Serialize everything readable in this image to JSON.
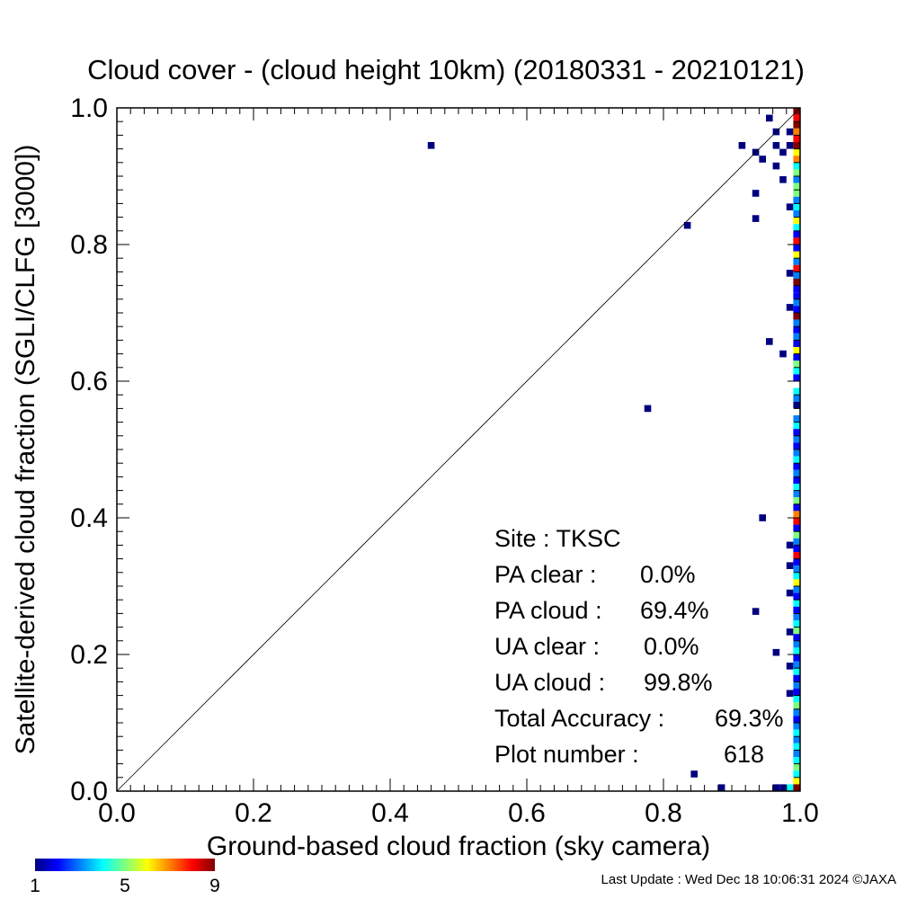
{
  "chart_data": {
    "type": "heatmap",
    "title": "Cloud cover - (cloud height 10km)  (20180331 - 20210121)",
    "xlabel": "Ground-based cloud fraction (sky camera)",
    "ylabel": "Satellite-derived cloud fraction (SGLI/CLFG [3000])",
    "xlim": [
      0.0,
      1.0
    ],
    "ylim": [
      0.0,
      1.0
    ],
    "xticks": [
      "0.0",
      "0.2",
      "0.4",
      "0.6",
      "0.8",
      "1.0"
    ],
    "yticks": [
      "0.0",
      "0.2",
      "0.4",
      "0.6",
      "0.8",
      "1.0"
    ],
    "diagonal": true,
    "stats": [
      {
        "label": "Site : TKSC",
        "value": ""
      },
      {
        "label": "PA clear :",
        "value": "0.0%"
      },
      {
        "label": "PA cloud :",
        "value": "69.4%"
      },
      {
        "label": "UA clear :",
        "value": "0.0%"
      },
      {
        "label": "UA cloud :",
        "value": "99.8%"
      },
      {
        "label": "Total Accuracy :",
        "value": "69.3%"
      },
      {
        "label": "Plot number :",
        "value": "618"
      }
    ],
    "colorbar": {
      "min_label": "1",
      "mid_label": "5",
      "max_label": "9",
      "colors": [
        "#00007f",
        "#0000ff",
        "#0080ff",
        "#00ffff",
        "#7fff7f",
        "#ffff00",
        "#ff8000",
        "#ff0000",
        "#7f0000"
      ]
    },
    "points": [
      {
        "x": 0.46,
        "y": 0.945,
        "count": 1
      },
      {
        "x": 0.777,
        "y": 0.56,
        "count": 1
      },
      {
        "x": 0.835,
        "y": 0.828,
        "count": 1
      },
      {
        "x": 0.845,
        "y": 0.025,
        "count": 1
      },
      {
        "x": 0.885,
        "y": 0.005,
        "count": 1
      },
      {
        "x": 0.915,
        "y": 0.945,
        "count": 1
      },
      {
        "x": 0.935,
        "y": 0.935,
        "count": 1
      },
      {
        "x": 0.935,
        "y": 0.875,
        "count": 1
      },
      {
        "x": 0.935,
        "y": 0.838,
        "count": 1
      },
      {
        "x": 0.935,
        "y": 0.263,
        "count": 1
      },
      {
        "x": 0.945,
        "y": 0.925,
        "count": 1
      },
      {
        "x": 0.945,
        "y": 0.4,
        "count": 1
      },
      {
        "x": 0.955,
        "y": 0.985,
        "count": 1
      },
      {
        "x": 0.955,
        "y": 0.658,
        "count": 1
      },
      {
        "x": 0.965,
        "y": 0.945,
        "count": 1
      },
      {
        "x": 0.965,
        "y": 0.965,
        "count": 1
      },
      {
        "x": 0.965,
        "y": 0.915,
        "count": 1
      },
      {
        "x": 0.965,
        "y": 0.203,
        "count": 1
      },
      {
        "x": 0.965,
        "y": 0.005,
        "count": 1
      },
      {
        "x": 0.975,
        "y": 0.935,
        "count": 1
      },
      {
        "x": 0.975,
        "y": 0.895,
        "count": 1
      },
      {
        "x": 0.975,
        "y": 0.64,
        "count": 1
      },
      {
        "x": 0.975,
        "y": 0.005,
        "count": 1
      },
      {
        "x": 0.985,
        "y": 0.965,
        "count": 1
      },
      {
        "x": 0.985,
        "y": 0.945,
        "count": 1
      },
      {
        "x": 0.985,
        "y": 0.855,
        "count": 1
      },
      {
        "x": 0.985,
        "y": 0.758,
        "count": 1
      },
      {
        "x": 0.985,
        "y": 0.708,
        "count": 1
      },
      {
        "x": 0.985,
        "y": 0.36,
        "count": 1
      },
      {
        "x": 0.985,
        "y": 0.33,
        "count": 1
      },
      {
        "x": 0.985,
        "y": 0.29,
        "count": 1
      },
      {
        "x": 0.985,
        "y": 0.233,
        "count": 1
      },
      {
        "x": 0.985,
        "y": 0.183,
        "count": 1
      },
      {
        "x": 0.985,
        "y": 0.143,
        "count": 1
      },
      {
        "x": 0.985,
        "y": 0.005,
        "count": 4
      },
      {
        "x": 0.995,
        "y": 0.995,
        "count": 9
      },
      {
        "x": 0.995,
        "y": 0.985,
        "count": 8
      },
      {
        "x": 0.995,
        "y": 0.975,
        "count": 9
      },
      {
        "x": 0.995,
        "y": 0.965,
        "count": 7
      },
      {
        "x": 0.995,
        "y": 0.955,
        "count": 8
      },
      {
        "x": 0.995,
        "y": 0.945,
        "count": 9
      },
      {
        "x": 0.995,
        "y": 0.935,
        "count": 6
      },
      {
        "x": 0.995,
        "y": 0.925,
        "count": 7
      },
      {
        "x": 0.995,
        "y": 0.915,
        "count": 4
      },
      {
        "x": 0.995,
        "y": 0.905,
        "count": 5
      },
      {
        "x": 0.995,
        "y": 0.895,
        "count": 3
      },
      {
        "x": 0.995,
        "y": 0.885,
        "count": 5
      },
      {
        "x": 0.995,
        "y": 0.875,
        "count": 5
      },
      {
        "x": 0.995,
        "y": 0.865,
        "count": 3
      },
      {
        "x": 0.995,
        "y": 0.855,
        "count": 4
      },
      {
        "x": 0.995,
        "y": 0.845,
        "count": 3
      },
      {
        "x": 0.995,
        "y": 0.835,
        "count": 6
      },
      {
        "x": 0.995,
        "y": 0.825,
        "count": 4
      },
      {
        "x": 0.995,
        "y": 0.815,
        "count": 2
      },
      {
        "x": 0.995,
        "y": 0.805,
        "count": 8
      },
      {
        "x": 0.995,
        "y": 0.795,
        "count": 2
      },
      {
        "x": 0.995,
        "y": 0.785,
        "count": 6
      },
      {
        "x": 0.995,
        "y": 0.775,
        "count": 3
      },
      {
        "x": 0.995,
        "y": 0.765,
        "count": 8
      },
      {
        "x": 0.995,
        "y": 0.755,
        "count": 3
      },
      {
        "x": 0.995,
        "y": 0.745,
        "count": 9
      },
      {
        "x": 0.995,
        "y": 0.735,
        "count": 2
      },
      {
        "x": 0.995,
        "y": 0.725,
        "count": 2
      },
      {
        "x": 0.995,
        "y": 0.715,
        "count": 3
      },
      {
        "x": 0.995,
        "y": 0.705,
        "count": 2
      },
      {
        "x": 0.995,
        "y": 0.695,
        "count": 9
      },
      {
        "x": 0.995,
        "y": 0.685,
        "count": 3
      },
      {
        "x": 0.995,
        "y": 0.675,
        "count": 2
      },
      {
        "x": 0.995,
        "y": 0.665,
        "count": 3
      },
      {
        "x": 0.995,
        "y": 0.655,
        "count": 2
      },
      {
        "x": 0.995,
        "y": 0.645,
        "count": 6
      },
      {
        "x": 0.995,
        "y": 0.635,
        "count": 2
      },
      {
        "x": 0.995,
        "y": 0.625,
        "count": 5
      },
      {
        "x": 0.995,
        "y": 0.615,
        "count": 4
      },
      {
        "x": 0.995,
        "y": 0.605,
        "count": 2
      },
      {
        "x": 0.995,
        "y": 0.585,
        "count": 4
      },
      {
        "x": 0.995,
        "y": 0.575,
        "count": 3
      },
      {
        "x": 0.995,
        "y": 0.565,
        "count": 1
      },
      {
        "x": 0.995,
        "y": 0.545,
        "count": 3
      },
      {
        "x": 0.995,
        "y": 0.535,
        "count": 4
      },
      {
        "x": 0.995,
        "y": 0.525,
        "count": 2
      },
      {
        "x": 0.995,
        "y": 0.515,
        "count": 3
      },
      {
        "x": 0.995,
        "y": 0.505,
        "count": 2
      },
      {
        "x": 0.995,
        "y": 0.495,
        "count": 3
      },
      {
        "x": 0.995,
        "y": 0.485,
        "count": 4
      },
      {
        "x": 0.995,
        "y": 0.475,
        "count": 2
      },
      {
        "x": 0.995,
        "y": 0.465,
        "count": 3
      },
      {
        "x": 0.995,
        "y": 0.455,
        "count": 2
      },
      {
        "x": 0.995,
        "y": 0.445,
        "count": 4
      },
      {
        "x": 0.995,
        "y": 0.435,
        "count": 3
      },
      {
        "x": 0.995,
        "y": 0.425,
        "count": 5
      },
      {
        "x": 0.995,
        "y": 0.415,
        "count": 2
      },
      {
        "x": 0.995,
        "y": 0.405,
        "count": 7
      },
      {
        "x": 0.995,
        "y": 0.395,
        "count": 8
      },
      {
        "x": 0.995,
        "y": 0.385,
        "count": 2
      },
      {
        "x": 0.995,
        "y": 0.375,
        "count": 5
      },
      {
        "x": 0.995,
        "y": 0.365,
        "count": 3
      },
      {
        "x": 0.995,
        "y": 0.355,
        "count": 2
      },
      {
        "x": 0.995,
        "y": 0.345,
        "count": 8
      },
      {
        "x": 0.995,
        "y": 0.335,
        "count": 2
      },
      {
        "x": 0.995,
        "y": 0.325,
        "count": 3
      },
      {
        "x": 0.995,
        "y": 0.315,
        "count": 4
      },
      {
        "x": 0.995,
        "y": 0.305,
        "count": 6
      },
      {
        "x": 0.995,
        "y": 0.295,
        "count": 3
      },
      {
        "x": 0.995,
        "y": 0.285,
        "count": 2
      },
      {
        "x": 0.995,
        "y": 0.275,
        "count": 4
      },
      {
        "x": 0.995,
        "y": 0.265,
        "count": 2
      },
      {
        "x": 0.995,
        "y": 0.255,
        "count": 3
      },
      {
        "x": 0.995,
        "y": 0.245,
        "count": 4
      },
      {
        "x": 0.995,
        "y": 0.235,
        "count": 5
      },
      {
        "x": 0.995,
        "y": 0.225,
        "count": 2
      },
      {
        "x": 0.995,
        "y": 0.215,
        "count": 3
      },
      {
        "x": 0.995,
        "y": 0.205,
        "count": 4
      },
      {
        "x": 0.995,
        "y": 0.195,
        "count": 2
      },
      {
        "x": 0.995,
        "y": 0.185,
        "count": 3
      },
      {
        "x": 0.995,
        "y": 0.175,
        "count": 4
      },
      {
        "x": 0.995,
        "y": 0.165,
        "count": 2
      },
      {
        "x": 0.995,
        "y": 0.155,
        "count": 3
      },
      {
        "x": 0.995,
        "y": 0.145,
        "count": 2
      },
      {
        "x": 0.995,
        "y": 0.135,
        "count": 4
      },
      {
        "x": 0.995,
        "y": 0.125,
        "count": 5
      },
      {
        "x": 0.995,
        "y": 0.115,
        "count": 3
      },
      {
        "x": 0.995,
        "y": 0.105,
        "count": 2
      },
      {
        "x": 0.995,
        "y": 0.095,
        "count": 3
      },
      {
        "x": 0.995,
        "y": 0.085,
        "count": 4
      },
      {
        "x": 0.995,
        "y": 0.075,
        "count": 3
      },
      {
        "x": 0.995,
        "y": 0.065,
        "count": 4
      },
      {
        "x": 0.995,
        "y": 0.055,
        "count": 3
      },
      {
        "x": 0.995,
        "y": 0.045,
        "count": 4
      },
      {
        "x": 0.995,
        "y": 0.035,
        "count": 5
      },
      {
        "x": 0.995,
        "y": 0.025,
        "count": 4
      },
      {
        "x": 0.995,
        "y": 0.015,
        "count": 6
      },
      {
        "x": 0.995,
        "y": 0.005,
        "count": 9
      }
    ]
  },
  "footer": {
    "last_update": "Last Update : Wed Dec 18 10:06:31 2024  ©JAXA"
  }
}
